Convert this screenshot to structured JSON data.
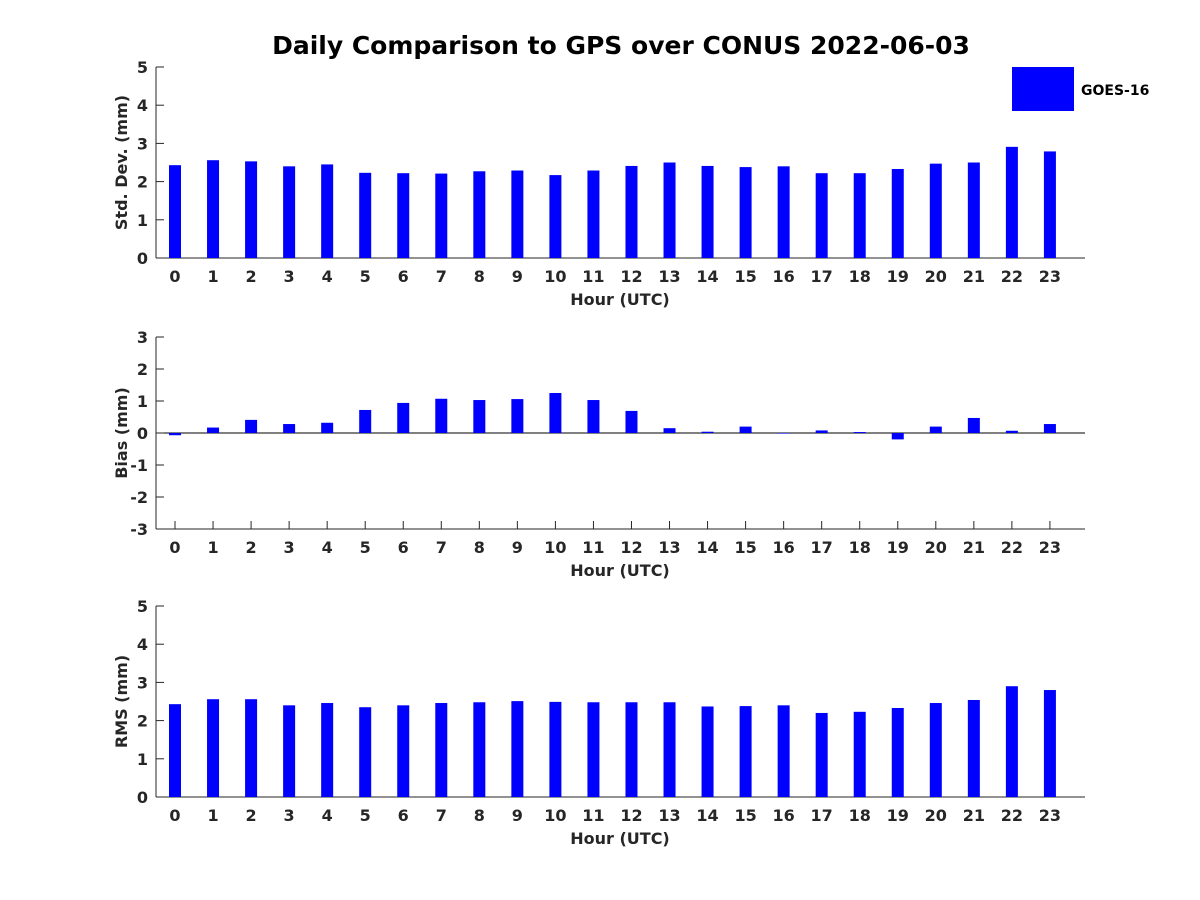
{
  "figure": {
    "title": "Daily Comparison to GPS over CONUS 2022-06-03",
    "legend": {
      "label": "GOES-16",
      "color": "#0000ff",
      "placement": "top-right"
    }
  },
  "chart_data": [
    {
      "type": "bar",
      "xlabel": "Hour (UTC)",
      "ylabel": "Std. Dev. (mm)",
      "ylim": [
        0,
        5
      ],
      "yticks": [
        "0",
        "1",
        "2",
        "3",
        "4",
        "5"
      ],
      "categories": [
        "0",
        "1",
        "2",
        "3",
        "4",
        "5",
        "6",
        "7",
        "8",
        "9",
        "10",
        "11",
        "12",
        "13",
        "14",
        "15",
        "16",
        "17",
        "18",
        "19",
        "20",
        "21",
        "22",
        "23"
      ],
      "series": [
        {
          "name": "GOES-16",
          "color": "#0000ff",
          "values": [
            2.43,
            2.56,
            2.53,
            2.4,
            2.45,
            2.23,
            2.22,
            2.21,
            2.27,
            2.29,
            2.17,
            2.29,
            2.41,
            2.5,
            2.41,
            2.38,
            2.4,
            2.22,
            2.22,
            2.33,
            2.47,
            2.5,
            2.91,
            2.79
          ]
        }
      ]
    },
    {
      "type": "bar",
      "xlabel": "Hour (UTC)",
      "ylabel": "Bias (mm)",
      "ylim": [
        -3,
        3
      ],
      "yticks": [
        "-3",
        "-2",
        "-1",
        "0",
        "1",
        "2",
        "3"
      ],
      "categories": [
        "0",
        "1",
        "2",
        "3",
        "4",
        "5",
        "6",
        "7",
        "8",
        "9",
        "10",
        "11",
        "12",
        "13",
        "14",
        "15",
        "16",
        "17",
        "18",
        "19",
        "20",
        "21",
        "22",
        "23"
      ],
      "series": [
        {
          "name": "GOES-16",
          "color": "#0000ff",
          "values": [
            -0.07,
            0.17,
            0.41,
            0.28,
            0.32,
            0.72,
            0.94,
            1.07,
            1.03,
            1.06,
            1.25,
            1.03,
            0.69,
            0.15,
            0.04,
            0.2,
            -0.01,
            0.08,
            0.03,
            -0.2,
            0.2,
            0.47,
            0.07,
            0.28
          ]
        }
      ]
    },
    {
      "type": "bar",
      "xlabel": "Hour (UTC)",
      "ylabel": "RMS (mm)",
      "ylim": [
        0,
        5
      ],
      "yticks": [
        "0",
        "1",
        "2",
        "3",
        "4",
        "5"
      ],
      "categories": [
        "0",
        "1",
        "2",
        "3",
        "4",
        "5",
        "6",
        "7",
        "8",
        "9",
        "10",
        "11",
        "12",
        "13",
        "14",
        "15",
        "16",
        "17",
        "18",
        "19",
        "20",
        "21",
        "22",
        "23"
      ],
      "series": [
        {
          "name": "GOES-16",
          "color": "#0000ff",
          "values": [
            2.43,
            2.56,
            2.56,
            2.4,
            2.46,
            2.35,
            2.4,
            2.46,
            2.48,
            2.51,
            2.49,
            2.48,
            2.48,
            2.48,
            2.37,
            2.38,
            2.4,
            2.2,
            2.23,
            2.33,
            2.46,
            2.54,
            2.9,
            2.8
          ]
        }
      ]
    }
  ]
}
